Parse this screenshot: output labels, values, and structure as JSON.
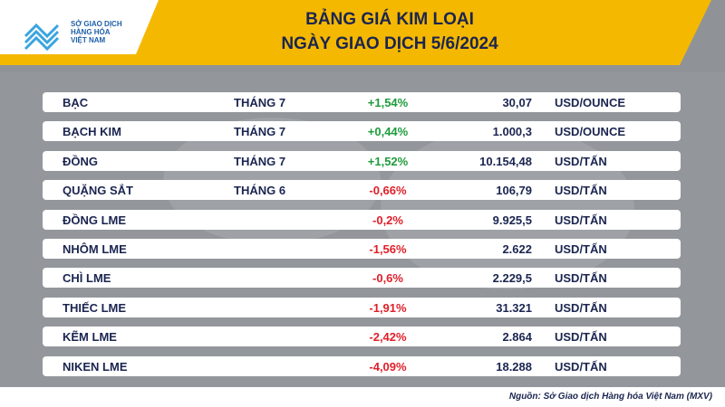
{
  "header": {
    "logo": [
      "SỞ GIAO DỊCH",
      "HÀNG HÓA",
      "VIỆT NAM"
    ],
    "title": [
      "BẢNG GIÁ KIM LOẠI",
      "NGÀY GIAO DỊCH 5/6/2024"
    ]
  },
  "table": {
    "rows": [
      {
        "name": "BẠC",
        "month": "THÁNG 7",
        "change": "+1,54%",
        "price": "30,07",
        "unit": "USD/OUNCE"
      },
      {
        "name": "BẠCH KIM",
        "month": "THÁNG 7",
        "change": "+0,44%",
        "price": "1.000,3",
        "unit": "USD/OUNCE"
      },
      {
        "name": "ĐỒNG",
        "month": "THÁNG 7",
        "change": "+1,52%",
        "price": "10.154,48",
        "unit": "USD/TẤN"
      },
      {
        "name": "QUẶNG SẮT",
        "month": "THÁNG 6",
        "change": "-0,66%",
        "price": "106,79",
        "unit": "USD/TẤN"
      },
      {
        "name": "ĐỒNG LME",
        "change": "-0,2%",
        "price": "9.925,5",
        "unit": "USD/TẤN"
      },
      {
        "name": "NHÔM LME",
        "change": "-1,56%",
        "price": "2.622",
        "unit": "USD/TẤN"
      },
      {
        "name": "CHÌ LME",
        "change": "-0,6%",
        "price": "2.229,5",
        "unit": "USD/TẤN"
      },
      {
        "name": "THIẾC LME",
        "change": "-1,91%",
        "price": "31.321",
        "unit": "USD/TẤN"
      },
      {
        "name": "KẼM LME",
        "change": "-2,42%",
        "price": "2.864",
        "unit": "USD/TẤN"
      },
      {
        "name": "NIKEN LME",
        "change": "-4,09%",
        "price": "18.288",
        "unit": "USD/TẤN"
      }
    ]
  },
  "footer": {
    "source": "Nguồn: Sở Giao dịch Hàng hóa Việt Nam (MXV)"
  }
}
